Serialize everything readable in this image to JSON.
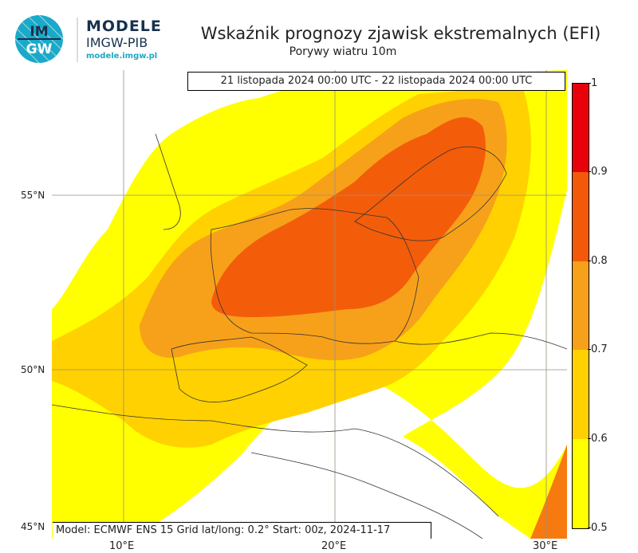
{
  "header": {
    "logo_text": "IMGW",
    "brand_name": "MODELE",
    "brand_org": "IMGW-PIB",
    "brand_url": "modele.imgw.pl",
    "title": "Wskaźnik prognozy zjawisk ekstremalnych (EFI)",
    "subtitle": "Porywy wiatru 10m"
  },
  "map": {
    "period": "21 listopada 2024 00:00 UTC - 22 listopada 2024 00:00 UTC",
    "model_info": "Model: ECMWF  ENS 15  Grid lat/long: 0.2°  Start: 00z, 2024-11-17",
    "lat_labels": [
      "55°N",
      "50°N",
      "45°N"
    ],
    "lon_labels": [
      "10°E",
      "20°E",
      "30°E"
    ]
  },
  "colorbar": {
    "labels": [
      "1",
      "0.9",
      "0.8",
      "0.7",
      "0.6",
      "0.5"
    ],
    "colors": [
      "#e8000b",
      "#f25a0a",
      "#f67a10",
      "#f7a11a",
      "#ffd100",
      "#ffff00"
    ]
  }
}
